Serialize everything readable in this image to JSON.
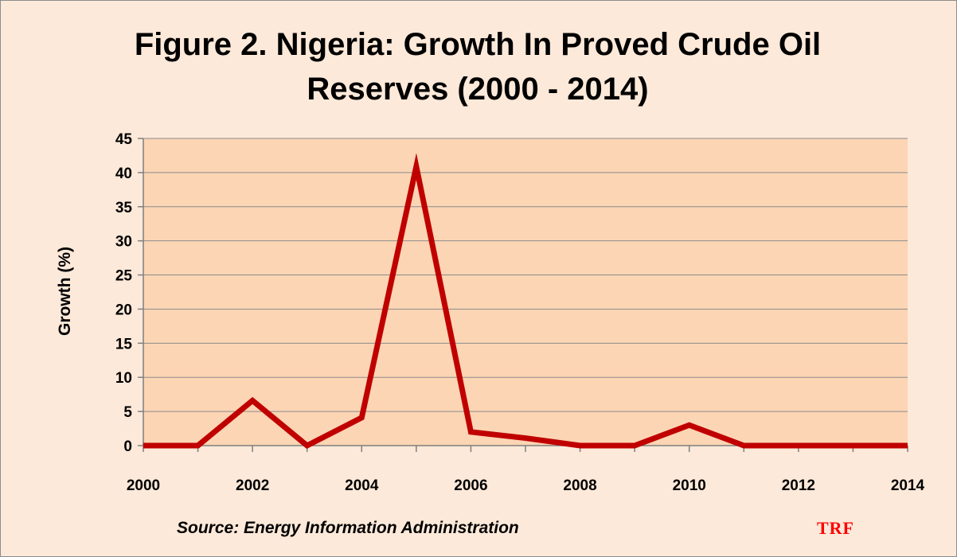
{
  "chart_data": {
    "type": "line",
    "title_lines": [
      "Figure 2. Nigeria: Growth In Proved Crude Oil",
      "Reserves (2000 - 2014)"
    ],
    "xlabel": "",
    "ylabel": "Growth (%)",
    "xlim": [
      2000,
      2014
    ],
    "ylim": [
      0,
      45
    ],
    "x_ticks": [
      2000,
      2002,
      2004,
      2006,
      2008,
      2010,
      2012,
      2014
    ],
    "y_ticks": [
      0,
      5,
      10,
      15,
      20,
      25,
      30,
      35,
      40,
      45
    ],
    "grid": "horizontal",
    "legend": "none",
    "series": [
      {
        "color": "#c00000",
        "x": [
          2000,
          2001,
          2002,
          2003,
          2004,
          2005,
          2006,
          2007,
          2008,
          2009,
          2010,
          2011,
          2012,
          2013,
          2014
        ],
        "values": [
          0,
          0,
          6.6,
          0,
          4.1,
          40.9,
          2.0,
          1.1,
          0,
          0,
          3.0,
          0,
          0,
          0,
          0
        ]
      }
    ],
    "plot_background": "#fcd5b4",
    "source": "Source: Energy Information Administration"
  },
  "watermark": "TRF"
}
